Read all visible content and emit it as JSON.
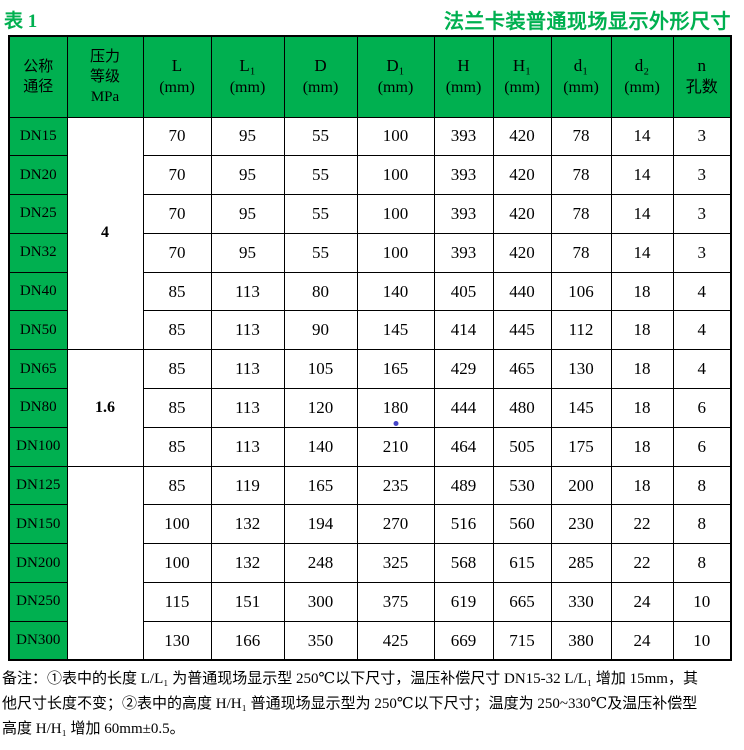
{
  "page": {
    "table_label": "表 1",
    "title": "法兰卡装普通现场显示外形尺寸"
  },
  "colors": {
    "accent_green": "#00B050",
    "border": "#000000",
    "stray_dot_blue": "#4545c8"
  },
  "table": {
    "columns": [
      {
        "key": "dn",
        "label_lines": [
          "公称",
          "通径"
        ]
      },
      {
        "key": "pressure",
        "label_lines": [
          "压力",
          "等级",
          "MPa"
        ]
      },
      {
        "key": "L",
        "label": "L",
        "unit": "(mm)"
      },
      {
        "key": "L1",
        "label": "L₁",
        "unit": "(mm)"
      },
      {
        "key": "D",
        "label": "D",
        "unit": "(mm)"
      },
      {
        "key": "D1",
        "label": "D₁",
        "unit": "(mm)"
      },
      {
        "key": "H",
        "label": "H",
        "unit": "(mm)"
      },
      {
        "key": "H1",
        "label": "H₁",
        "unit": "(mm)"
      },
      {
        "key": "d1",
        "label": "d₁",
        "unit": "(mm)"
      },
      {
        "key": "d2",
        "label": "d₂",
        "unit": "(mm)"
      },
      {
        "key": "n",
        "label": "n",
        "unit": "孔数"
      }
    ],
    "groups": [
      {
        "pressure": "4",
        "rows": [
          {
            "dn": "DN15",
            "values": [
              70,
              95,
              55,
              100,
              393,
              420,
              78,
              14,
              3
            ]
          },
          {
            "dn": "DN20",
            "values": [
              70,
              95,
              55,
              100,
              393,
              420,
              78,
              14,
              3
            ]
          },
          {
            "dn": "DN25",
            "values": [
              70,
              95,
              55,
              100,
              393,
              420,
              78,
              14,
              3
            ]
          },
          {
            "dn": "DN32",
            "values": [
              70,
              95,
              55,
              100,
              393,
              420,
              78,
              14,
              3
            ]
          },
          {
            "dn": "DN40",
            "values": [
              85,
              113,
              80,
              140,
              405,
              440,
              106,
              18,
              4
            ]
          },
          {
            "dn": "DN50",
            "values": [
              85,
              113,
              90,
              145,
              414,
              445,
              112,
              18,
              4
            ]
          }
        ]
      },
      {
        "pressure": "1.6",
        "rows": [
          {
            "dn": "DN65",
            "values": [
              85,
              113,
              105,
              165,
              429,
              465,
              130,
              18,
              4
            ]
          },
          {
            "dn": "DN80",
            "values": [
              85,
              113,
              120,
              180,
              444,
              480,
              145,
              18,
              6
            ],
            "dot_col": 3
          },
          {
            "dn": "DN100",
            "values": [
              85,
              113,
              140,
              210,
              464,
              505,
              175,
              18,
              6
            ]
          }
        ]
      },
      {
        "pressure": "",
        "rows": [
          {
            "dn": "DN125",
            "values": [
              85,
              119,
              165,
              235,
              489,
              530,
              200,
              18,
              8
            ]
          },
          {
            "dn": "DN150",
            "values": [
              100,
              132,
              194,
              270,
              516,
              560,
              230,
              22,
              8
            ]
          },
          {
            "dn": "DN200",
            "values": [
              100,
              132,
              248,
              325,
              568,
              615,
              285,
              22,
              8
            ]
          },
          {
            "dn": "DN250",
            "values": [
              115,
              151,
              300,
              375,
              619,
              665,
              330,
              24,
              10
            ]
          },
          {
            "dn": "DN300",
            "values": [
              130,
              166,
              350,
              425,
              669,
              715,
              380,
              24,
              10
            ]
          }
        ]
      }
    ]
  },
  "footnote": {
    "lines": [
      "备注：①表中的长度 L/L₁ 为普通现场显示型 250℃以下尺寸，温压补偿尺寸 DN15-32 L/L₁ 增加 15mm，其",
      "他尺寸长度不变；②表中的高度 H/H₁ 普通现场显示型为 250℃以下尺寸；温度为 250~330℃及温压补偿型",
      "高度 H/H₁ 增加 60mm±0.5。"
    ]
  }
}
